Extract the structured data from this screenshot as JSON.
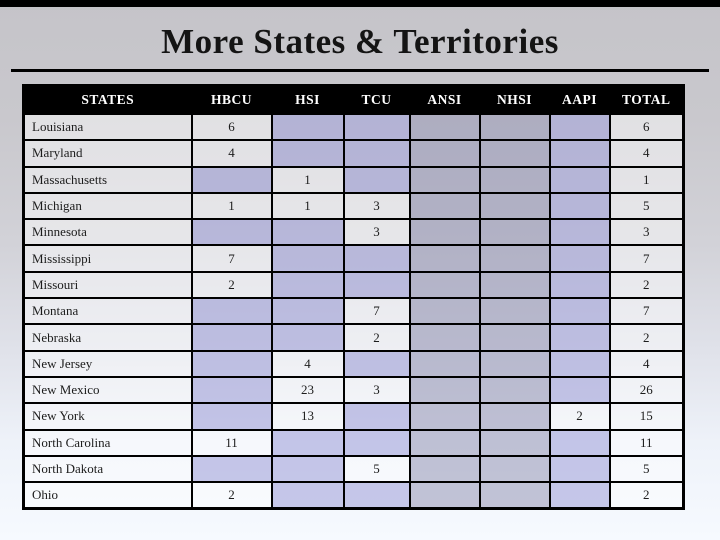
{
  "slide": {
    "title": "More States & Territories"
  },
  "colors": {
    "top_bar": "#000000",
    "title_text": "#141414",
    "header_bg": "#000000",
    "header_text": "#ffffff",
    "table_border": "#000000",
    "empty_cell_lavender": "#ccccea",
    "empty_cell_gray": "#c6c6d6",
    "filled_cell_light": "#f2f4f8",
    "background_top": "#c5c4c9",
    "background_bottom": "#f6faff"
  },
  "table": {
    "columns": [
      "STATES",
      "HBCU",
      "HSI",
      "TCU",
      "ANSI",
      "NHSI",
      "AAPI",
      "TOTAL"
    ],
    "gray_column_indexes": [
      4,
      5
    ],
    "rows": [
      [
        "Louisiana",
        "6",
        "",
        "",
        "",
        "",
        "",
        "6"
      ],
      [
        "Maryland",
        "4",
        "",
        "",
        "",
        "",
        "",
        "4"
      ],
      [
        "Massachusetts",
        "",
        "1",
        "",
        "",
        "",
        "",
        "1"
      ],
      [
        "Michigan",
        "1",
        "1",
        "3",
        "",
        "",
        "",
        "5"
      ],
      [
        "Minnesota",
        "",
        "",
        "3",
        "",
        "",
        "",
        "3"
      ],
      [
        "Mississippi",
        "7",
        "",
        "",
        "",
        "",
        "",
        "7"
      ],
      [
        "Missouri",
        "2",
        "",
        "",
        "",
        "",
        "",
        "2"
      ],
      [
        "Montana",
        "",
        "",
        "7",
        "",
        "",
        "",
        "7"
      ],
      [
        "Nebraska",
        "",
        "",
        "2",
        "",
        "",
        "",
        "2"
      ],
      [
        "New Jersey",
        "",
        "4",
        "",
        "",
        "",
        "",
        "4"
      ],
      [
        "New Mexico",
        "",
        "23",
        "3",
        "",
        "",
        "",
        "26"
      ],
      [
        "New York",
        "",
        "13",
        "",
        "",
        "",
        "2",
        "15"
      ],
      [
        "North Carolina",
        "11",
        "",
        "",
        "",
        "",
        "",
        "11"
      ],
      [
        "North Dakota",
        "",
        "",
        "5",
        "",
        "",
        "",
        "5"
      ],
      [
        "Ohio",
        "2",
        "",
        "",
        "",
        "",
        "",
        "2"
      ]
    ]
  }
}
